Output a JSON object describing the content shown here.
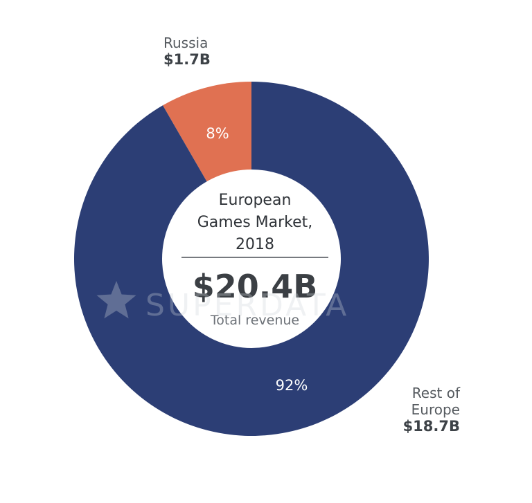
{
  "chart_data": {
    "type": "pie",
    "title": "European Games Market, 2018",
    "title_lines": [
      "European",
      "Games Market,",
      "2018"
    ],
    "center_value": "$20.4B",
    "center_caption": "Total revenue",
    "slices": [
      {
        "label_lines": [
          "Russia"
        ],
        "value": 1.7,
        "value_label": "$1.7B",
        "percent": 8,
        "percent_label": "8%",
        "color": "#e07152"
      },
      {
        "label_lines": [
          "Rest of",
          "Europe"
        ],
        "value": 18.7,
        "value_label": "$18.7B",
        "percent": 92,
        "percent_label": "92%",
        "color": "#2c3e75"
      }
    ],
    "watermark": "SUPERDATA"
  }
}
